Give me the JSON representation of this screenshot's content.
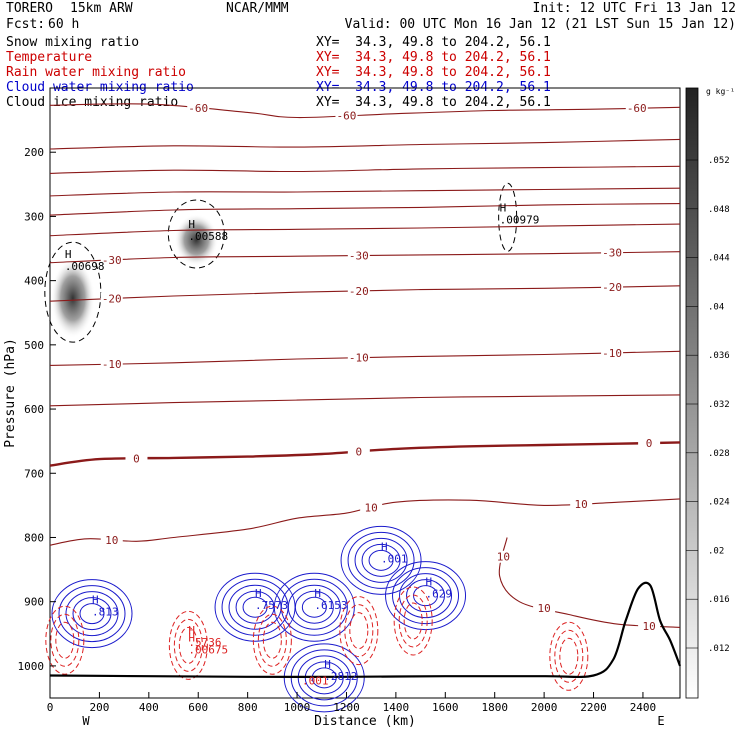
{
  "header": {
    "model": "TORERO",
    "resolution": "15km ARW",
    "org": "NCAR/MMM",
    "init": "Init: 12 UTC Fri 13 Jan 12",
    "fcst_label": "Fcst:",
    "fcst_value": "60 h",
    "valid": "Valid: 00 UTC Mon 16 Jan 12 (21 LST Sun 15 Jan 12)"
  },
  "legend": [
    {
      "label": "Snow mixing ratio",
      "xy": "XY=  34.3, 49.8 to 204.2, 56.1",
      "color": "#000000"
    },
    {
      "label": "Temperature",
      "xy": "XY=  34.3, 49.8 to 204.2, 56.1",
      "color": "#cc0000"
    },
    {
      "label": "Rain water mixing ratio",
      "xy": "XY=  34.3, 49.8 to 204.2, 56.1",
      "color": "#cc0000"
    },
    {
      "label": "Cloud water mixing ratio",
      "xy": "XY=  34.3, 49.8 to 204.2, 56.1",
      "color": "#0000cc"
    },
    {
      "label": "Cloud ice mixing ratio",
      "xy": "XY=  34.3, 49.8 to 204.2, 56.1",
      "color": "#000000"
    }
  ],
  "colors": {
    "temperature": "#8b1a1a",
    "rain": "#dd2222",
    "cloud_water": "#1a1acc",
    "terrain": "#000000"
  },
  "chart_data": {
    "type": "line",
    "xlabel": "Distance (km)",
    "ylabel": "Pressure (hPa)",
    "xlim": [
      0,
      2550
    ],
    "ylim": [
      1050,
      100
    ],
    "x_ticks": [
      "0",
      "200",
      "400",
      "600",
      "800",
      "1000",
      "1200",
      "1400",
      "1600",
      "1800",
      "2000",
      "2200",
      "2400"
    ],
    "y_ticks": [
      "200",
      "300",
      "400",
      "500",
      "600",
      "700",
      "800",
      "900",
      "1000"
    ],
    "x_end_labels": {
      "left": "W",
      "right": "E"
    },
    "colorbar": {
      "unit": "g kg⁻¹",
      "ticks": [
        ".012",
        ".016",
        ".02",
        ".024",
        ".028",
        ".032",
        ".036",
        ".04",
        ".044",
        ".048",
        ".052"
      ]
    },
    "isotherms": [
      {
        "label": "-60",
        "points": [
          [
            0,
            127
          ],
          [
            400,
            125
          ],
          [
            800,
            138
          ],
          [
            1000,
            146
          ],
          [
            1400,
            140
          ],
          [
            1800,
            135
          ],
          [
            2200,
            133
          ],
          [
            2550,
            130
          ]
        ]
      },
      {
        "label": "",
        "points": [
          [
            0,
            195
          ],
          [
            500,
            190
          ],
          [
            1000,
            192
          ],
          [
            1500,
            188
          ],
          [
            2000,
            185
          ],
          [
            2550,
            180
          ]
        ]
      },
      {
        "label": "",
        "points": [
          [
            0,
            233
          ],
          [
            500,
            228
          ],
          [
            1000,
            230
          ],
          [
            1500,
            226
          ],
          [
            2000,
            224
          ],
          [
            2550,
            222
          ]
        ]
      },
      {
        "label": "",
        "points": [
          [
            0,
            268
          ],
          [
            500,
            262
          ],
          [
            1000,
            262
          ],
          [
            1500,
            260
          ],
          [
            2000,
            258
          ],
          [
            2550,
            256
          ]
        ]
      },
      {
        "label": "",
        "points": [
          [
            0,
            298
          ],
          [
            500,
            290
          ],
          [
            1000,
            288
          ],
          [
            1500,
            286
          ],
          [
            2000,
            282
          ],
          [
            2550,
            280
          ]
        ]
      },
      {
        "label": "",
        "points": [
          [
            0,
            330
          ],
          [
            500,
            322
          ],
          [
            1000,
            320
          ],
          [
            1500,
            318
          ],
          [
            2000,
            315
          ],
          [
            2550,
            312
          ]
        ]
      },
      {
        "label": "-30",
        "points": [
          [
            0,
            372
          ],
          [
            500,
            364
          ],
          [
            1000,
            362
          ],
          [
            1500,
            360
          ],
          [
            2000,
            358
          ],
          [
            2550,
            355
          ]
        ]
      },
      {
        "label": "-20",
        "points": [
          [
            0,
            432
          ],
          [
            500,
            424
          ],
          [
            1000,
            418
          ],
          [
            1500,
            414
          ],
          [
            2000,
            412
          ],
          [
            2550,
            408
          ]
        ]
      },
      {
        "label": "-10",
        "points": [
          [
            0,
            532
          ],
          [
            500,
            528
          ],
          [
            1000,
            522
          ],
          [
            1500,
            518
          ],
          [
            2000,
            515
          ],
          [
            2550,
            510
          ]
        ]
      },
      {
        "label": "",
        "points": [
          [
            0,
            595
          ],
          [
            500,
            590
          ],
          [
            1000,
            586
          ],
          [
            1500,
            582
          ],
          [
            2000,
            580
          ],
          [
            2550,
            578
          ]
        ]
      },
      {
        "label": "0",
        "points": [
          [
            0,
            688
          ],
          [
            200,
            678
          ],
          [
            500,
            676
          ],
          [
            800,
            674
          ],
          [
            1100,
            670
          ],
          [
            1400,
            662
          ],
          [
            1700,
            658
          ],
          [
            2000,
            656
          ],
          [
            2300,
            654
          ],
          [
            2550,
            652
          ]
        ]
      },
      {
        "label": "10",
        "points": [
          [
            0,
            812
          ],
          [
            150,
            802
          ],
          [
            350,
            806
          ],
          [
            500,
            800
          ],
          [
            800,
            787
          ],
          [
            1000,
            770
          ],
          [
            1200,
            762
          ],
          [
            1400,
            745
          ],
          [
            1700,
            742
          ],
          [
            2000,
            750
          ],
          [
            2300,
            745
          ],
          [
            2550,
            740
          ]
        ]
      },
      {
        "label": "10",
        "points": [
          [
            1850,
            800
          ],
          [
            1820,
            860
          ],
          [
            1900,
            900
          ],
          [
            2100,
            920
          ],
          [
            2300,
            935
          ],
          [
            2550,
            940
          ]
        ]
      }
    ],
    "snow_maxima": [
      {
        "label": "H",
        "value": ".00698",
        "x": 60,
        "p": 365
      },
      {
        "label": "H",
        "value": ".00588",
        "x": 560,
        "p": 318
      },
      {
        "label": "H",
        "value": ".00979",
        "x": 1820,
        "p": 292
      }
    ],
    "cloud_water_maxima": [
      {
        "label": "H",
        "value": ".813",
        "x": 170,
        "p": 903
      },
      {
        "label": "H",
        "value": ".7573",
        "x": 830,
        "p": 893
      },
      {
        "label": "H",
        "value": ".6153",
        "x": 1070,
        "p": 893
      },
      {
        "label": "H",
        "value": ".629",
        "x": 1520,
        "p": 875
      },
      {
        "label": "H",
        "value": ".2812",
        "x": 1110,
        "p": 1003
      },
      {
        "label": "H",
        "value": ".001",
        "x": 1340,
        "p": 820
      }
    ],
    "rain_maxima": [
      {
        "label": "H",
        "value": ".5736",
        "x": 560,
        "p": 950
      },
      {
        "label": "H",
        "value": ".00675",
        "x": 560,
        "p": 962
      },
      {
        "label": "",
        "value": ".001",
        "x": 1020,
        "p": 1010
      }
    ]
  }
}
